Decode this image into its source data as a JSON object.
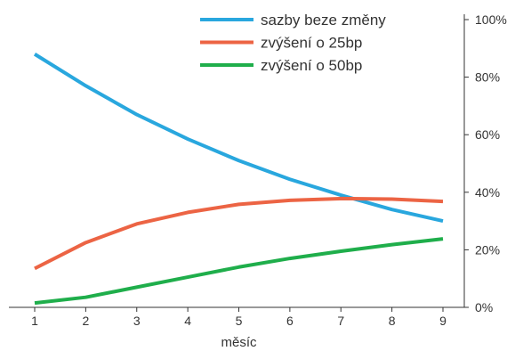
{
  "chart_data": {
    "type": "line",
    "x": [
      1,
      2,
      3,
      4,
      5,
      6,
      7,
      8,
      9
    ],
    "xlabel": "měsíc",
    "ylabel": "",
    "ylim": [
      0,
      100
    ],
    "y_axis_position": "right",
    "y_tick_labels": [
      "0%",
      "20%",
      "40%",
      "60%",
      "80%",
      "100%"
    ],
    "y_tick_values": [
      0,
      20,
      40,
      60,
      80,
      100
    ],
    "x_tick_labels": [
      "1",
      "2",
      "3",
      "4",
      "5",
      "6",
      "7",
      "8",
      "9"
    ],
    "grid": false,
    "legend_position": "top-right",
    "series": [
      {
        "name": "sazby beze změny",
        "color": "#29a7de",
        "values": [
          88,
          77,
          67,
          58.5,
          51,
          44.5,
          39,
          34,
          30
        ]
      },
      {
        "name": "zvýšení o 25bp",
        "color": "#ec6444",
        "values": [
          13.5,
          22.5,
          29,
          33,
          35.8,
          37.2,
          37.8,
          37.6,
          36.8
        ]
      },
      {
        "name": "zvýšení o 50bp",
        "color": "#1fae4b",
        "values": [
          1.5,
          3.5,
          7,
          10.5,
          14,
          17,
          19.5,
          21.8,
          23.8
        ]
      }
    ]
  }
}
